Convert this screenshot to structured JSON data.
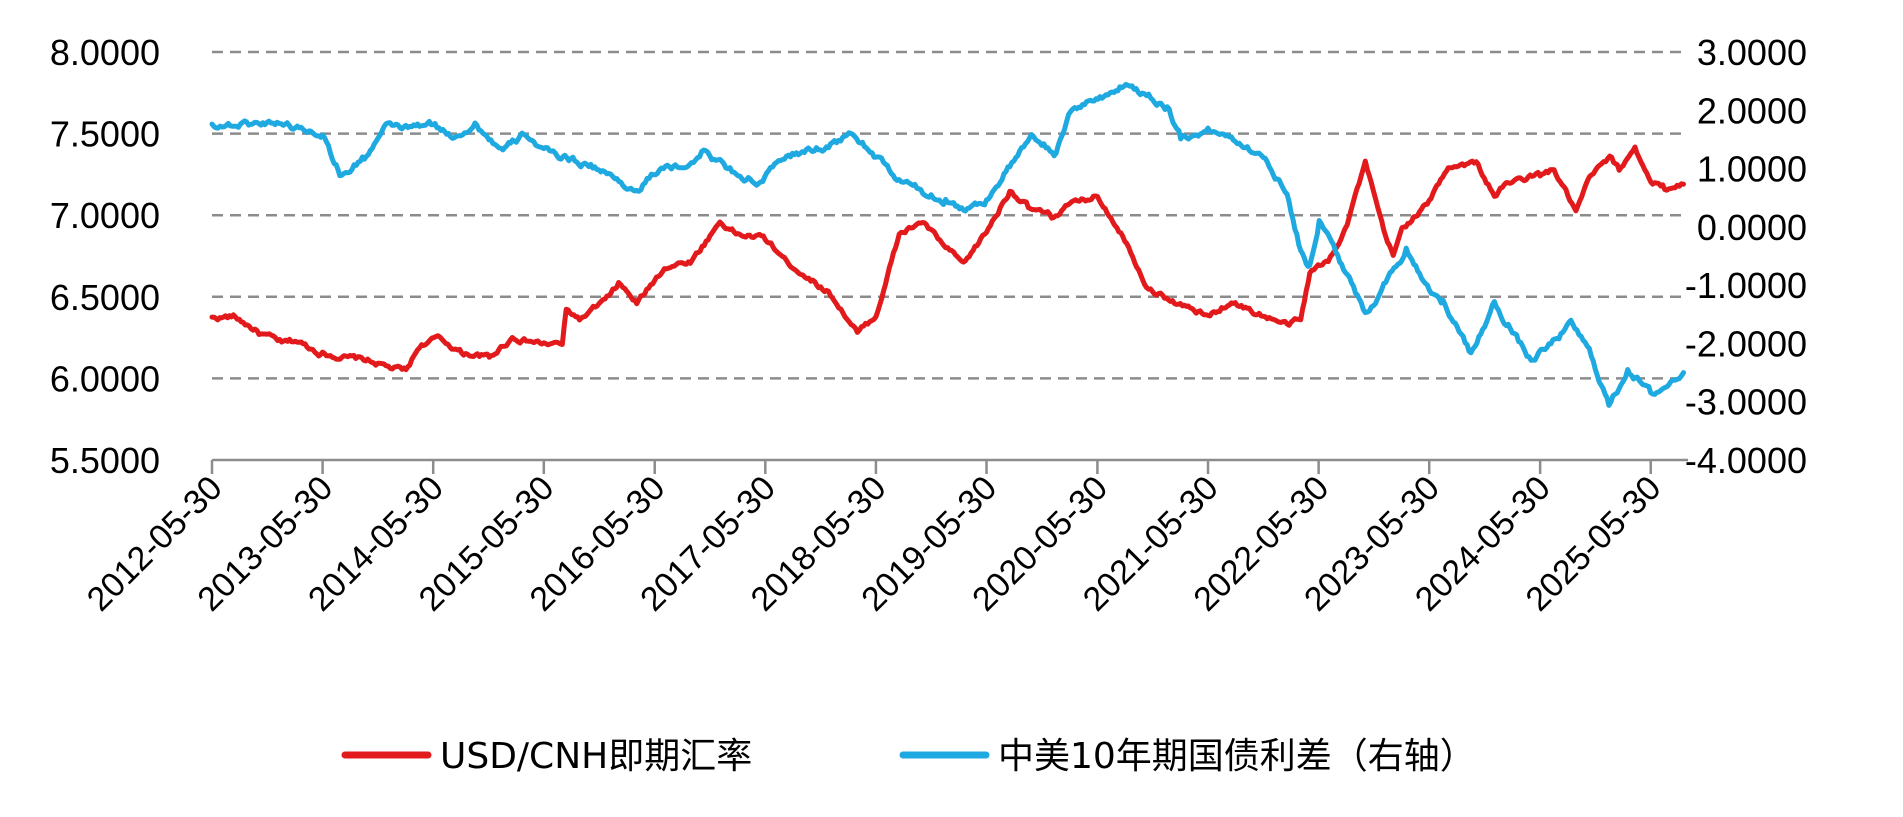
{
  "chart_data": {
    "type": "line",
    "title": "",
    "xlabel": "",
    "ylabel": "",
    "grid": {
      "horizontal": true,
      "vertical": false,
      "style": "dashed"
    },
    "legend_position": "bottom-center",
    "x_ticks": [
      "2012-05-30",
      "2013-05-30",
      "2014-05-30",
      "2015-05-30",
      "2016-05-30",
      "2017-05-30",
      "2018-05-30",
      "2019-05-30",
      "2020-05-30",
      "2021-05-30",
      "2022-05-30",
      "2023-05-30",
      "2024-05-30",
      "2025-05-30"
    ],
    "x_range": [
      "2012-05-30",
      "2025-09-30"
    ],
    "y_left": {
      "range": [
        5.5,
        8.0
      ],
      "ticks": [
        8.0,
        7.5,
        7.0,
        6.5,
        6.0,
        5.5
      ],
      "tick_labels": [
        "8.0000",
        "7.5000",
        "7.0000",
        "6.5000",
        "6.0000",
        "5.5000"
      ]
    },
    "y_right": {
      "range": [
        -4.0,
        3.0
      ],
      "ticks": [
        3.0,
        2.0,
        1.0,
        0.0,
        -1.0,
        -2.0,
        -3.0,
        -4.0
      ],
      "tick_labels": [
        "3.0000",
        "2.0000",
        "1.0000",
        "0.0000",
        "-1.0000",
        "-2.0000",
        "-3.0000",
        "-4.0000"
      ]
    },
    "series": [
      {
        "name": "USD/CNH即期汇率",
        "axis": "left",
        "color": "#e31a1c",
        "points": [
          [
            "2012-05-30",
            6.37
          ],
          [
            "2012-08-15",
            6.38
          ],
          [
            "2012-11-01",
            6.28
          ],
          [
            "2013-01-15",
            6.22
          ],
          [
            "2013-03-01",
            6.23
          ],
          [
            "2013-05-30",
            6.15
          ],
          [
            "2013-08-15",
            6.13
          ],
          [
            "2013-11-01",
            6.11
          ],
          [
            "2014-01-15",
            6.06
          ],
          [
            "2014-03-01",
            6.05
          ],
          [
            "2014-04-15",
            6.2
          ],
          [
            "2014-06-15",
            6.25
          ],
          [
            "2014-09-01",
            6.16
          ],
          [
            "2014-12-01",
            6.13
          ],
          [
            "2015-02-15",
            6.25
          ],
          [
            "2015-05-30",
            6.21
          ],
          [
            "2015-07-30",
            6.21
          ],
          [
            "2015-08-12",
            6.42
          ],
          [
            "2015-10-01",
            6.36
          ],
          [
            "2015-12-31",
            6.5
          ],
          [
            "2016-02-01",
            6.58
          ],
          [
            "2016-04-01",
            6.46
          ],
          [
            "2016-07-01",
            6.68
          ],
          [
            "2016-10-01",
            6.72
          ],
          [
            "2016-12-31",
            6.96
          ],
          [
            "2017-03-01",
            6.88
          ],
          [
            "2017-05-30",
            6.86
          ],
          [
            "2017-08-01",
            6.73
          ],
          [
            "2017-10-01",
            6.64
          ],
          [
            "2017-12-31",
            6.52
          ],
          [
            "2018-03-30",
            6.28
          ],
          [
            "2018-05-30",
            6.38
          ],
          [
            "2018-08-15",
            6.88
          ],
          [
            "2018-10-31",
            6.96
          ],
          [
            "2019-01-15",
            6.8
          ],
          [
            "2019-03-15",
            6.7
          ],
          [
            "2019-05-30",
            6.9
          ],
          [
            "2019-08-15",
            7.15
          ],
          [
            "2019-10-15",
            7.05
          ],
          [
            "2019-12-31",
            6.99
          ],
          [
            "2020-02-15",
            7.05
          ],
          [
            "2020-05-30",
            7.12
          ],
          [
            "2020-08-15",
            6.9
          ],
          [
            "2020-11-15",
            6.55
          ],
          [
            "2021-02-15",
            6.46
          ],
          [
            "2021-05-30",
            6.38
          ],
          [
            "2021-08-15",
            6.47
          ],
          [
            "2021-11-15",
            6.39
          ],
          [
            "2022-02-15",
            6.33
          ],
          [
            "2022-04-01",
            6.36
          ],
          [
            "2022-05-01",
            6.65
          ],
          [
            "2022-07-01",
            6.72
          ],
          [
            "2022-09-01",
            6.95
          ],
          [
            "2022-10-31",
            7.32
          ],
          [
            "2022-12-31",
            6.9
          ],
          [
            "2023-01-31",
            6.75
          ],
          [
            "2023-03-01",
            6.92
          ],
          [
            "2023-05-30",
            7.08
          ],
          [
            "2023-08-01",
            7.3
          ],
          [
            "2023-11-01",
            7.32
          ],
          [
            "2023-12-31",
            7.12
          ],
          [
            "2024-02-15",
            7.2
          ],
          [
            "2024-05-30",
            7.25
          ],
          [
            "2024-07-15",
            7.28
          ],
          [
            "2024-09-25",
            7.02
          ],
          [
            "2024-11-15",
            7.25
          ],
          [
            "2025-01-15",
            7.35
          ],
          [
            "2025-02-15",
            7.28
          ],
          [
            "2025-04-08",
            7.42
          ],
          [
            "2025-05-30",
            7.2
          ],
          [
            "2025-07-15",
            7.17
          ],
          [
            "2025-09-15",
            7.19
          ]
        ]
      },
      {
        "name": "中美10年期国债利差（右轴）",
        "axis": "right",
        "color": "#1fa9e1",
        "points": [
          [
            "2012-05-30",
            1.75
          ],
          [
            "2012-09-01",
            1.75
          ],
          [
            "2012-12-31",
            1.8
          ],
          [
            "2013-03-01",
            1.7
          ],
          [
            "2013-05-30",
            1.6
          ],
          [
            "2013-07-01",
            1.2
          ],
          [
            "2013-08-01",
            0.85
          ],
          [
            "2013-10-15",
            1.2
          ],
          [
            "2014-01-01",
            1.75
          ],
          [
            "2014-03-01",
            1.7
          ],
          [
            "2014-05-30",
            1.75
          ],
          [
            "2014-08-01",
            1.55
          ],
          [
            "2014-10-15",
            1.75
          ],
          [
            "2015-01-15",
            1.3
          ],
          [
            "2015-04-01",
            1.6
          ],
          [
            "2015-05-30",
            1.3
          ],
          [
            "2015-08-01",
            1.2
          ],
          [
            "2015-11-01",
            1.05
          ],
          [
            "2016-02-15",
            0.75
          ],
          [
            "2016-04-01",
            0.6
          ],
          [
            "2016-06-15",
            1.0
          ],
          [
            "2016-09-01",
            1.0
          ],
          [
            "2016-11-01",
            1.3
          ],
          [
            "2017-03-01",
            0.9
          ],
          [
            "2017-05-15",
            0.75
          ],
          [
            "2017-08-01",
            1.2
          ],
          [
            "2017-12-31",
            1.4
          ],
          [
            "2018-03-15",
            1.6
          ],
          [
            "2018-05-30",
            1.2
          ],
          [
            "2018-08-01",
            0.85
          ],
          [
            "2018-11-01",
            0.6
          ],
          [
            "2019-01-15",
            0.45
          ],
          [
            "2019-03-15",
            0.3
          ],
          [
            "2019-05-30",
            0.45
          ],
          [
            "2019-08-15",
            1.05
          ],
          [
            "2019-11-01",
            1.55
          ],
          [
            "2020-01-15",
            1.25
          ],
          [
            "2020-03-10",
            2.05
          ],
          [
            "2020-06-01",
            2.2
          ],
          [
            "2020-09-01",
            2.45
          ],
          [
            "2020-11-15",
            2.25
          ],
          [
            "2021-01-15",
            2.05
          ],
          [
            "2021-03-01",
            1.55
          ],
          [
            "2021-05-30",
            1.65
          ],
          [
            "2021-08-15",
            1.55
          ],
          [
            "2021-11-15",
            1.25
          ],
          [
            "2022-02-15",
            0.6
          ],
          [
            "2022-04-01",
            -0.4
          ],
          [
            "2022-05-01",
            -0.7
          ],
          [
            "2022-06-01",
            0.1
          ],
          [
            "2022-08-01",
            -0.5
          ],
          [
            "2022-10-31",
            -1.5
          ],
          [
            "2022-12-31",
            -1.0
          ],
          [
            "2023-03-15",
            -0.4
          ],
          [
            "2023-05-30",
            -1.05
          ],
          [
            "2023-07-15",
            -1.3
          ],
          [
            "2023-10-15",
            -2.2
          ],
          [
            "2023-12-31",
            -1.3
          ],
          [
            "2024-02-15",
            -1.7
          ],
          [
            "2024-04-30",
            -2.3
          ],
          [
            "2024-06-15",
            -2.1
          ],
          [
            "2024-09-15",
            -1.65
          ],
          [
            "2024-11-15",
            -2.2
          ],
          [
            "2025-01-12",
            -3.05
          ],
          [
            "2025-02-15",
            -2.75
          ],
          [
            "2025-03-15",
            -2.45
          ],
          [
            "2025-05-30",
            -2.85
          ],
          [
            "2025-07-15",
            -2.75
          ],
          [
            "2025-09-15",
            -2.5
          ]
        ]
      }
    ]
  }
}
